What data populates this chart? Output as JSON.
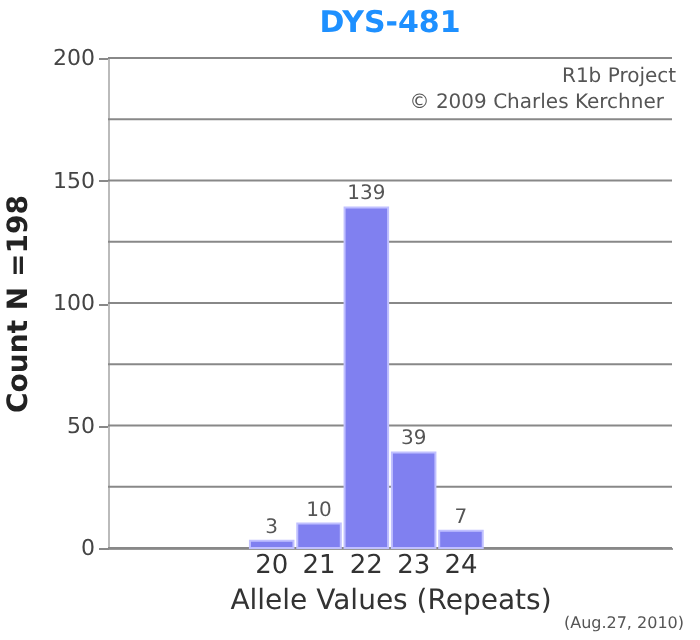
{
  "chart_data": {
    "type": "bar",
    "title": "DYS-481",
    "xlabel": "Allele Values (Repeats)",
    "ylabel": "Count N =198",
    "categories": [
      null,
      null,
      null,
      "20",
      "21",
      "22",
      "23",
      "24",
      null,
      null,
      null,
      null
    ],
    "values": [
      null,
      null,
      null,
      3,
      10,
      139,
      39,
      7,
      null,
      null,
      null,
      null
    ],
    "color": "#8080f0",
    "ylim": [
      0,
      200
    ],
    "yticks": [
      0,
      {
        "value": 25,
        "label": null
      },
      50,
      {
        "value": 75,
        "label": null
      },
      100,
      {
        "value": 125,
        "label": null
      },
      150,
      {
        "value": 175,
        "label": null
      },
      200
    ],
    "grid": true,
    "data_labels": true,
    "annotations": [
      "R1b Project",
      "© 2009 Charles Kerchner",
      "(Aug.27, 2010)"
    ]
  }
}
